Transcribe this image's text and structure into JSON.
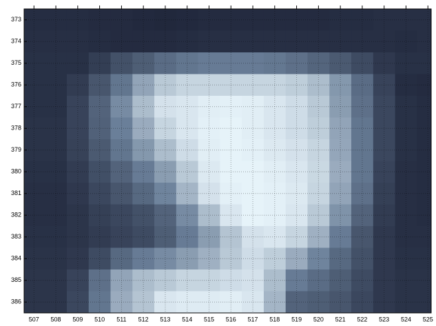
{
  "chart_data": {
    "type": "heatmap",
    "x": [
      507,
      508,
      509,
      510,
      511,
      512,
      513,
      514,
      515,
      516,
      517,
      518,
      519,
      520,
      521,
      522,
      523,
      524,
      525
    ],
    "y": [
      373,
      374,
      375,
      376,
      377,
      378,
      379,
      380,
      381,
      382,
      383,
      384,
      385,
      386
    ],
    "xlim": [
      506.55,
      525.15
    ],
    "ylim": [
      372.5,
      386.5
    ],
    "xticks": [
      507,
      508,
      509,
      510,
      511,
      512,
      513,
      514,
      515,
      516,
      517,
      518,
      519,
      520,
      521,
      522,
      523,
      524,
      525
    ],
    "yticks": [
      373,
      374,
      375,
      376,
      377,
      378,
      379,
      380,
      381,
      382,
      383,
      384,
      385,
      386
    ],
    "grid": true,
    "colormap": [
      "#1c2236",
      "#6a7f99",
      "#eefaff"
    ],
    "vlim": [
      0,
      100
    ],
    "values": [
      [
        6,
        6,
        6,
        5,
        5,
        4,
        3,
        4,
        5,
        5,
        5,
        5,
        5,
        5,
        6,
        6,
        7,
        7,
        7
      ],
      [
        7,
        7,
        7,
        6,
        5,
        5,
        5,
        6,
        7,
        7,
        7,
        7,
        7,
        7,
        7,
        7,
        7,
        6,
        7
      ],
      [
        8,
        8,
        8,
        15,
        25,
        32,
        40,
        45,
        48,
        48,
        48,
        46,
        42,
        36,
        30,
        22,
        12,
        8,
        8
      ],
      [
        8,
        8,
        14,
        28,
        45,
        65,
        80,
        85,
        85,
        85,
        85,
        85,
        82,
        75,
        60,
        40,
        18,
        6,
        5
      ],
      [
        8,
        8,
        18,
        35,
        55,
        75,
        90,
        92,
        95,
        96,
        95,
        92,
        88,
        80,
        62,
        42,
        20,
        8,
        6
      ],
      [
        9,
        9,
        18,
        34,
        50,
        68,
        85,
        92,
        96,
        97,
        95,
        92,
        88,
        82,
        65,
        45,
        20,
        8,
        6
      ],
      [
        9,
        9,
        17,
        30,
        45,
        60,
        75,
        88,
        95,
        97,
        96,
        93,
        90,
        85,
        66,
        45,
        20,
        8,
        6
      ],
      [
        8,
        8,
        14,
        24,
        35,
        48,
        62,
        80,
        93,
        97,
        97,
        95,
        92,
        86,
        68,
        45,
        18,
        7,
        6
      ],
      [
        7,
        7,
        12,
        20,
        28,
        38,
        52,
        72,
        90,
        96,
        97,
        96,
        93,
        85,
        65,
        42,
        16,
        7,
        6
      ],
      [
        7,
        7,
        10,
        16,
        20,
        25,
        35,
        55,
        75,
        92,
        97,
        96,
        92,
        80,
        58,
        35,
        14,
        7,
        6
      ],
      [
        8,
        8,
        10,
        14,
        18,
        22,
        32,
        48,
        62,
        78,
        90,
        92,
        85,
        70,
        48,
        28,
        12,
        7,
        7
      ],
      [
        9,
        9,
        12,
        22,
        38,
        48,
        55,
        62,
        70,
        80,
        88,
        82,
        68,
        52,
        38,
        25,
        12,
        8,
        8
      ],
      [
        10,
        10,
        18,
        42,
        65,
        75,
        80,
        85,
        85,
        88,
        90,
        75,
        48,
        40,
        32,
        22,
        12,
        9,
        9
      ],
      [
        10,
        10,
        20,
        45,
        68,
        78,
        92,
        94,
        94,
        95,
        92,
        72,
        35,
        32,
        28,
        20,
        12,
        9,
        9
      ]
    ]
  }
}
